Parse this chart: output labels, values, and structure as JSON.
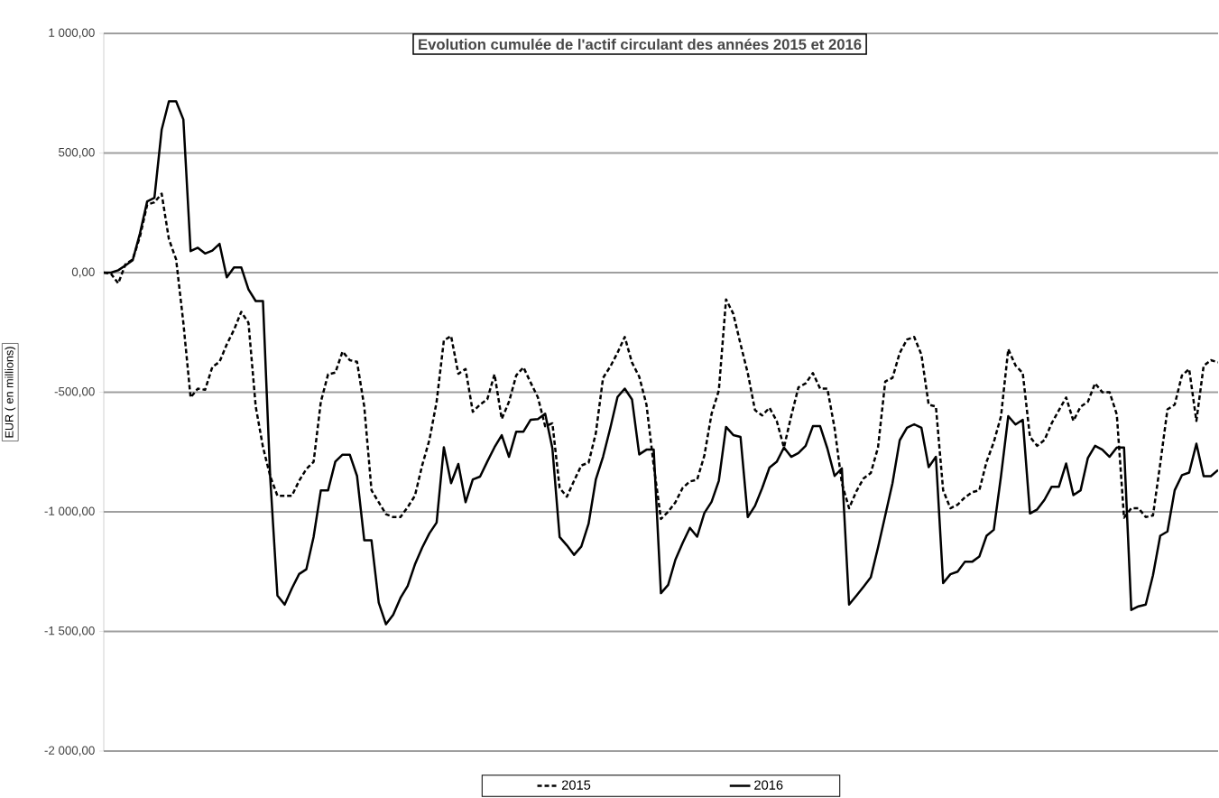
{
  "chart_data": {
    "type": "line",
    "title": "Evolution cumulée de l'actif circulant des années 2015 et 2016",
    "ylabel": "EUR ( en millions)",
    "categories": [
      null,
      null,
      null,
      null,
      null,
      null,
      null,
      null,
      null,
      null,
      null,
      null,
      null,
      null,
      null,
      null,
      null,
      null,
      null,
      null,
      null,
      null,
      null,
      null,
      null,
      null,
      null,
      null,
      null,
      null,
      null,
      null,
      null,
      null,
      null,
      null,
      null,
      null,
      null,
      null,
      null,
      null,
      null,
      null,
      null,
      null,
      null,
      null,
      null,
      null,
      null,
      null,
      null,
      null,
      null,
      null,
      null,
      null,
      null,
      null,
      null,
      null,
      null,
      null,
      null,
      null,
      null,
      null,
      null,
      null,
      null,
      null,
      null,
      null,
      null,
      null,
      null,
      null,
      null,
      null,
      null,
      null,
      null,
      null,
      null,
      null,
      null,
      null,
      null,
      null,
      null,
      null,
      null,
      null,
      null,
      null,
      null,
      null,
      null,
      null,
      null,
      null,
      null,
      null,
      null,
      null,
      null,
      null,
      null,
      null,
      null,
      null,
      null,
      null,
      null,
      null,
      null,
      null,
      null,
      null,
      null,
      null,
      null,
      null,
      null,
      null,
      null,
      null,
      null,
      null,
      null,
      null,
      null,
      null,
      null,
      null,
      null,
      null,
      null,
      null,
      null,
      null,
      null,
      null,
      null,
      null,
      null,
      null,
      null,
      null,
      null,
      null,
      null,
      null,
      null
    ],
    "series": [
      {
        "name": "2015",
        "color": "#000000",
        "line_style": "dashed",
        "values": [
          0,
          -5,
          -45,
          35,
          55,
          150,
          284,
          294,
          330,
          140,
          55,
          -210,
          -522,
          -485,
          -490,
          -395,
          -373,
          -300,
          -239,
          -164,
          -210,
          -560,
          -729,
          -851,
          -933,
          -933,
          -933,
          -870,
          -821,
          -791,
          -540,
          -425,
          -418,
          -330,
          -366,
          -373,
          -560,
          -910,
          -960,
          -1010,
          -1022,
          -1022,
          -980,
          -933,
          -806,
          -700,
          -540,
          -284,
          -265,
          -423,
          -403,
          -582,
          -552,
          -530,
          -425,
          -612,
          -540,
          -430,
          -396,
          -460,
          -522,
          -642,
          -630,
          -900,
          -937,
          -870,
          -806,
          -795,
          -672,
          -440,
          -393,
          -335,
          -269,
          -376,
          -435,
          -552,
          -806,
          -1030,
          -1000,
          -960,
          -900,
          -873,
          -866,
          -765,
          -590,
          -493,
          -112,
          -172,
          -299,
          -420,
          -575,
          -597,
          -565,
          -620,
          -731,
          -600,
          -480,
          -463,
          -420,
          -485,
          -485,
          -650,
          -880,
          -985,
          -915,
          -860,
          -838,
          -731,
          -455,
          -440,
          -336,
          -280,
          -269,
          -343,
          -552,
          -560,
          -910,
          -985,
          -970,
          -940,
          -918,
          -910,
          -791,
          -709,
          -600,
          -320,
          -388,
          -420,
          -687,
          -724,
          -700,
          -630,
          -575,
          -522,
          -620,
          -560,
          -540,
          -463,
          -500,
          -500,
          -593,
          -1025,
          -985,
          -985,
          -1022,
          -1015,
          -800,
          -572,
          -552,
          -430,
          -403,
          -620,
          -390,
          -366,
          -375
        ]
      },
      {
        "name": "2016",
        "color": "#000000",
        "line_style": "solid",
        "values": [
          0,
          0,
          10,
          30,
          52,
          164,
          298,
          313,
          597,
          716,
          716,
          640,
          90,
          104,
          80,
          92,
          120,
          -20,
          22,
          22,
          -70,
          -119,
          -119,
          -855,
          -1350,
          -1388,
          -1320,
          -1260,
          -1240,
          -1105,
          -910,
          -910,
          -790,
          -761,
          -761,
          -850,
          -1119,
          -1119,
          -1380,
          -1470,
          -1430,
          -1360,
          -1310,
          -1220,
          -1150,
          -1090,
          -1045,
          -730,
          -880,
          -800,
          -960,
          -865,
          -853,
          -790,
          -730,
          -680,
          -770,
          -665,
          -665,
          -615,
          -612,
          -590,
          -735,
          -1105,
          -1140,
          -1180,
          -1145,
          -1050,
          -865,
          -770,
          -650,
          -520,
          -485,
          -530,
          -760,
          -740,
          -740,
          -1340,
          -1305,
          -1200,
          -1130,
          -1067,
          -1104,
          -1005,
          -958,
          -870,
          -645,
          -679,
          -687,
          -1022,
          -975,
          -900,
          -815,
          -791,
          -731,
          -770,
          -754,
          -724,
          -642,
          -642,
          -735,
          -850,
          -818,
          -1388,
          -1351,
          -1313,
          -1274,
          -1149,
          -1015,
          -880,
          -701,
          -649,
          -634,
          -649,
          -813,
          -770,
          -1298,
          -1261,
          -1250,
          -1209,
          -1209,
          -1187,
          -1100,
          -1075,
          -850,
          -600,
          -635,
          -615,
          -1007,
          -990,
          -950,
          -895,
          -895,
          -798,
          -930,
          -910,
          -775,
          -724,
          -740,
          -770,
          -731,
          -731,
          -1410,
          -1395,
          -1388,
          -1265,
          -1100,
          -1082,
          -910,
          -847,
          -836,
          -715,
          -851,
          -851,
          -825
        ]
      }
    ],
    "ylim": [
      -2000,
      1000
    ],
    "yticks": [
      {
        "value": -2000,
        "label": "-2 000,00"
      },
      {
        "value": -1500,
        "label": "-1 500,00"
      },
      {
        "value": -1000,
        "label": "-1 000,00"
      },
      {
        "value": -500,
        "label": "-500,00"
      },
      {
        "value": 0,
        "label": "0,00"
      },
      {
        "value": 500,
        "label": "500,00"
      },
      {
        "value": 1000,
        "label": "1 000,00"
      }
    ],
    "grid": "y",
    "legend": "bottom",
    "tick_labels": "y"
  }
}
